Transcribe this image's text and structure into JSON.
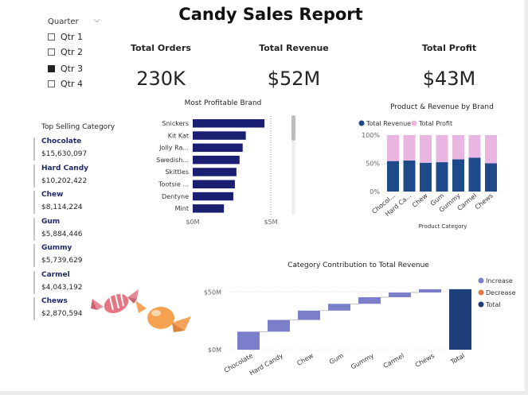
{
  "report": {
    "title": "Candy Sales Report"
  },
  "slicer": {
    "title": "Quarter",
    "options": [
      {
        "label": "Qtr 1",
        "checked": false
      },
      {
        "label": "Qtr 2",
        "checked": false
      },
      {
        "label": "Qtr 3",
        "checked": true
      },
      {
        "label": "Qtr 4",
        "checked": false
      }
    ]
  },
  "kpis": [
    {
      "label": "Total Orders",
      "value": "230K"
    },
    {
      "label": "Total Revenue",
      "value": "$52M"
    },
    {
      "label": "Total Profit",
      "value": "$43M"
    }
  ],
  "top_selling": {
    "title": "Top Selling Category",
    "items": [
      {
        "name": "Chocolate",
        "value": "$15,630,097"
      },
      {
        "name": "Hard Candy",
        "value": "$10,202,422"
      },
      {
        "name": "Chew",
        "value": "$8,114,224"
      },
      {
        "name": "Gum",
        "value": "$5,884,446"
      },
      {
        "name": "Gummy",
        "value": "$5,739,629"
      },
      {
        "name": "Carmel",
        "value": "$4,043,192"
      },
      {
        "name": "Chews",
        "value": "$2,870,594"
      }
    ]
  },
  "colors": {
    "navy": "#1a1f71",
    "revenue": "#1e4a8a",
    "profit": "#e8b6e0",
    "increase": "#7b7fca",
    "decrease": "#e07a45",
    "total": "#1e3f7a"
  },
  "chart_data": [
    {
      "type": "bar",
      "title": "Most Profitable Brand",
      "orientation": "horizontal",
      "categories": [
        "Snickers",
        "Kit Kat",
        "Jolly Ra...",
        "Swedish...",
        "Skittles",
        "Tootsie ...",
        "Dentyne",
        "Mint"
      ],
      "values": [
        4.6,
        3.4,
        3.2,
        3.0,
        2.8,
        2.7,
        2.6,
        2.0
      ],
      "tick_labels": [
        "$0M",
        "$5M"
      ],
      "xlim": [
        0,
        5
      ]
    },
    {
      "type": "bar",
      "title": "Product & Revenue by Brand",
      "stacked": "100%",
      "xlabel": "Product Category",
      "categories": [
        "Chocol...",
        "Hard Ca...",
        "Chew",
        "Gum",
        "Gummy",
        "Carmel",
        "Chews"
      ],
      "series": [
        {
          "name": "Total Revenue",
          "values": [
            54,
            55,
            51,
            52,
            57,
            60,
            50
          ]
        },
        {
          "name": "Total Profit",
          "values": [
            46,
            45,
            49,
            48,
            43,
            40,
            50
          ]
        }
      ],
      "tick_labels": [
        "0%",
        "50%",
        "100%"
      ],
      "ylim": [
        0,
        100
      ],
      "legend": "top-left"
    },
    {
      "type": "bar",
      "subtype": "waterfall",
      "title": "Category Contribution to Total Revenue",
      "categories": [
        "Chocolate",
        "Hard Candy",
        "Chew",
        "Gum",
        "Gummy",
        "Carmel",
        "Chews",
        "Total"
      ],
      "values": [
        15.63,
        10.2,
        8.11,
        5.88,
        5.74,
        4.04,
        2.87,
        52.5
      ],
      "tick_labels": [
        "$0M",
        "$50M"
      ],
      "ylim": [
        0,
        60
      ],
      "legend_items": [
        "Increase",
        "Decrease",
        "Total"
      ],
      "legend": "right"
    }
  ]
}
